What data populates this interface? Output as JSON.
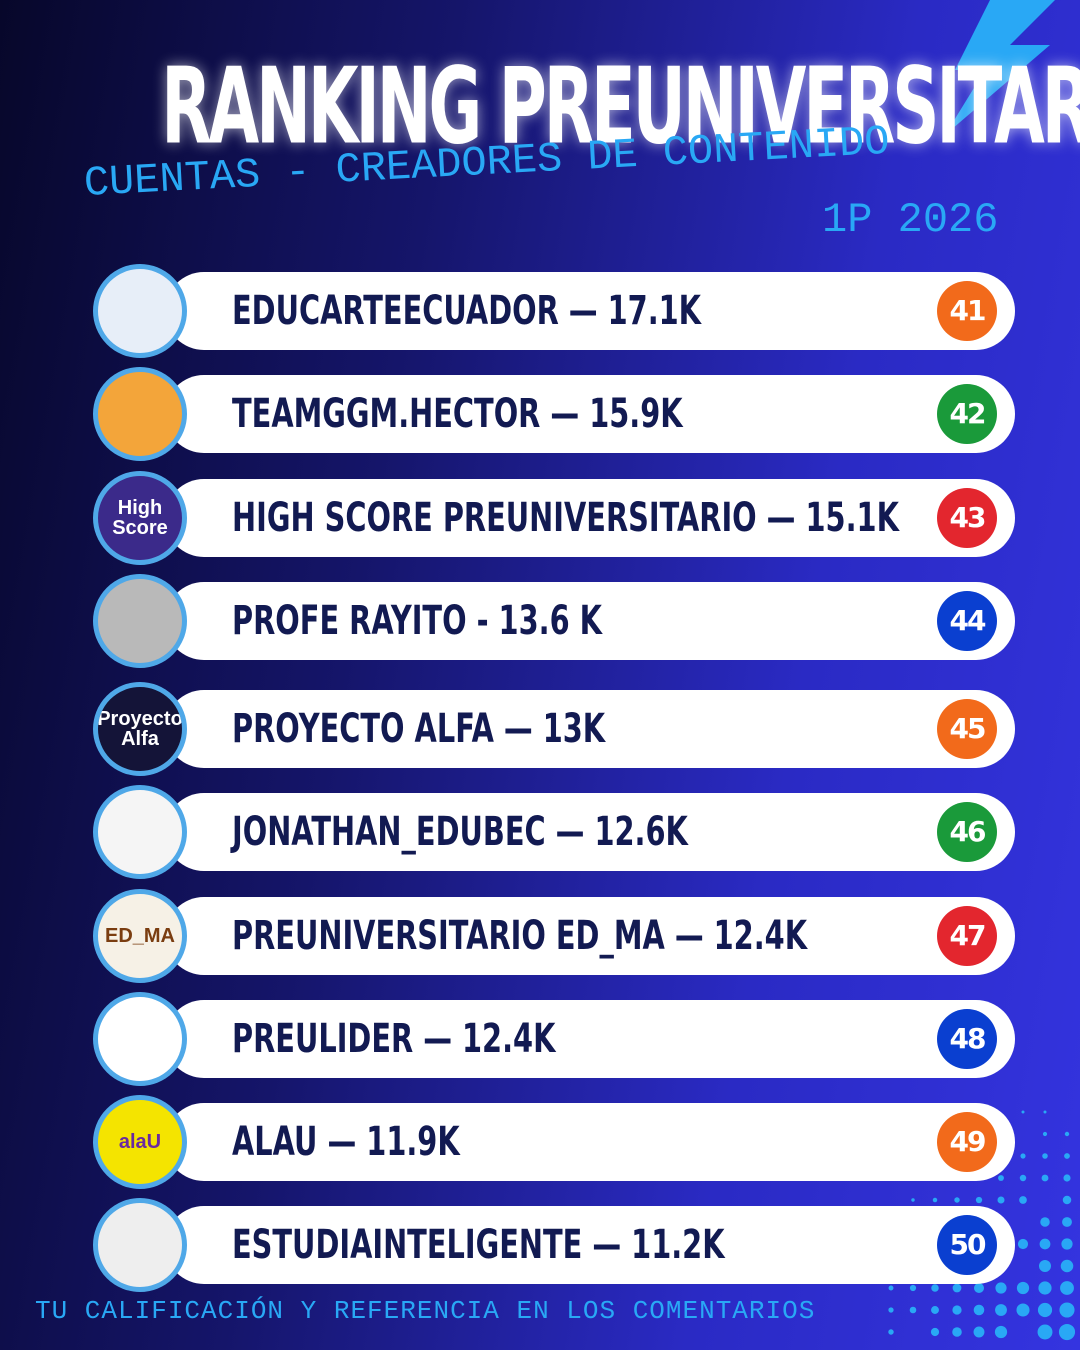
{
  "header": {
    "title": "RANKING PREUNIVERSITARIOS",
    "subtitle": "CUENTAS - CREADORES DE CONTENIDO",
    "period": "1P 2026"
  },
  "rows": [
    {
      "name": "EDUCARTEECUADOR — 17.1K",
      "rank": "41",
      "color": "#f26a1b"
    },
    {
      "name": "TEAMGGM.HECTOR — 15.9K",
      "rank": "42",
      "color": "#1a9a3a"
    },
    {
      "name": "HIGH SCORE PREUNIVERSITARIO — 15.1K",
      "rank": "43",
      "color": "#e3262e",
      "avatar_text": "High Score"
    },
    {
      "name": "PROFE RAYITO - 13.6 K",
      "rank": "44",
      "color": "#0a3fd0"
    },
    {
      "name": "PROYECTO ALFA — 13K",
      "rank": "45",
      "color": "#f26a1b",
      "avatar_text": "Proyecto Alfa"
    },
    {
      "name": "JONATHAN_EDUBEC — 12.6K",
      "rank": "46",
      "color": "#1a9a3a"
    },
    {
      "name": "PREUNIVERSITARIO ED_MA — 12.4K",
      "rank": "47",
      "color": "#e3262e",
      "avatar_text": "ED_MA"
    },
    {
      "name": "PREULIDER — 12.4K",
      "rank": "48",
      "color": "#0a3fd0"
    },
    {
      "name": "ALAU — 11.9K",
      "rank": "49",
      "color": "#f26a1b",
      "avatar_text": "alaU"
    },
    {
      "name": "ESTUDIAINTELIGENTE — 11.2K",
      "rank": "50",
      "color": "#0a3fd0"
    }
  ],
  "footer": "TU CALIFICACIÓN Y REFERENCIA EN LOS COMENTARIOS"
}
